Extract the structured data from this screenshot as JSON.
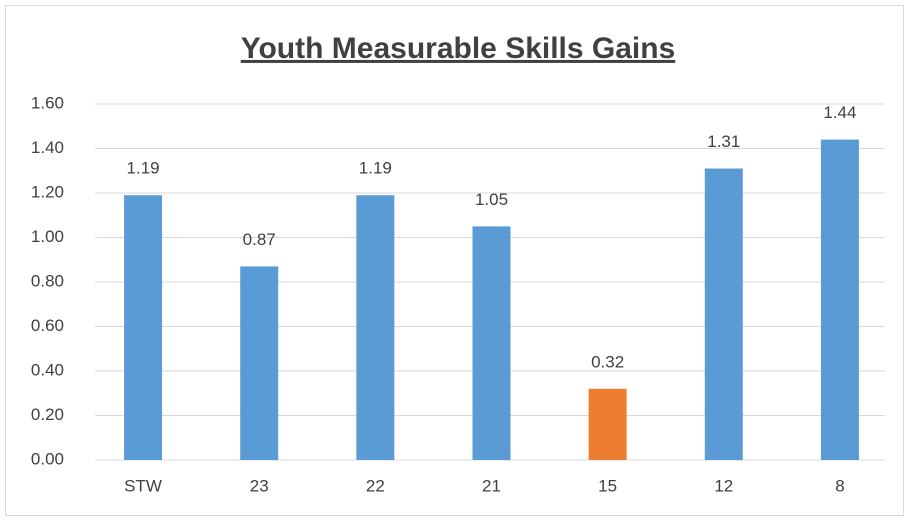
{
  "chart_data": {
    "type": "bar",
    "title": "Youth Measurable Skills Gains",
    "categories": [
      "STW",
      "23",
      "22",
      "21",
      "15",
      "12",
      "8"
    ],
    "values": [
      1.19,
      0.87,
      1.19,
      1.05,
      0.32,
      1.31,
      1.44
    ],
    "colors": [
      "#5b9bd5",
      "#5b9bd5",
      "#5b9bd5",
      "#5b9bd5",
      "#ed7d31",
      "#5b9bd5",
      "#5b9bd5"
    ],
    "ylim": [
      0,
      1.6
    ],
    "yticks": [
      {
        "value": 0,
        "label": "0.00"
      },
      {
        "value": 0.2,
        "label": "0.20"
      },
      {
        "value": 0.4,
        "label": "0.40"
      },
      {
        "value": 0.6,
        "label": "0.60"
      },
      {
        "value": 0.8,
        "label": "0.80"
      },
      {
        "value": 1.0,
        "label": "1.00"
      },
      {
        "value": 1.2,
        "label": "1.20"
      },
      {
        "value": 1.4,
        "label": "1.40"
      },
      {
        "value": 1.6,
        "label": "1.60"
      }
    ],
    "grid": true
  }
}
